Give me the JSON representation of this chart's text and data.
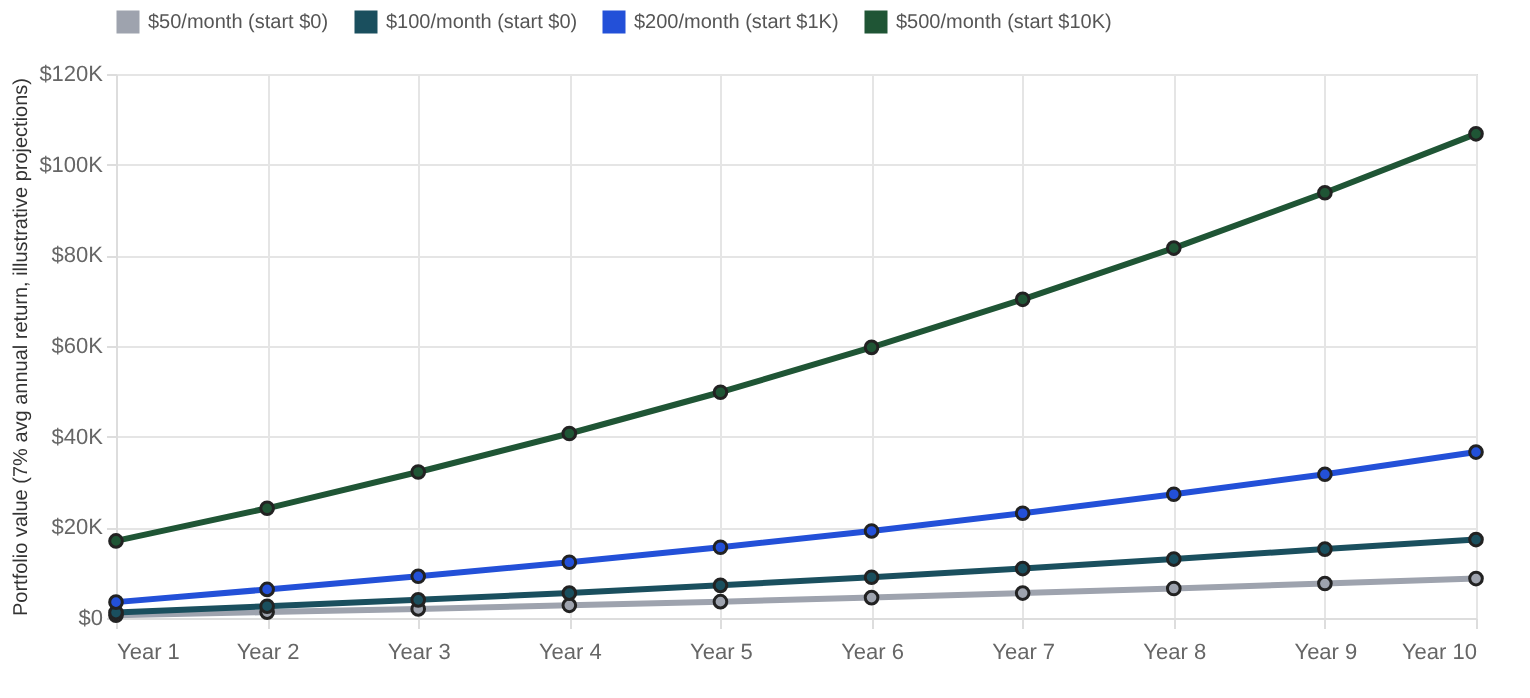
{
  "chart_data": {
    "type": "line",
    "ylabel": "Portfolio value (7% avg annual return, illustrative projections)",
    "categories": [
      "Year 1",
      "Year 2",
      "Year 3",
      "Year 4",
      "Year 5",
      "Year 6",
      "Year 7",
      "Year 8",
      "Year 9",
      "Year 10"
    ],
    "series": [
      {
        "name": "$50/month (start $0)",
        "color": "#9ea3ae",
        "values": [
          600,
          1300,
          2000,
          2800,
          3600,
          4500,
          5500,
          6500,
          7600,
          8700
        ]
      },
      {
        "name": "$100/month (start $0)",
        "color": "#1a4f5e",
        "values": [
          1200,
          2600,
          4000,
          5500,
          7200,
          9000,
          10900,
          13000,
          15200,
          17300
        ]
      },
      {
        "name": "$200/month (start $1K)",
        "color": "#2350d8",
        "values": [
          3500,
          6300,
          9200,
          12300,
          15600,
          19200,
          23100,
          27300,
          31700,
          36600
        ]
      },
      {
        "name": "$500/month (start $10K)",
        "color": "#1f5535",
        "values": [
          17000,
          24200,
          32200,
          40700,
          49800,
          59700,
          70300,
          81600,
          93800,
          106800
        ]
      }
    ],
    "ylim": [
      0,
      120000
    ],
    "yticks": [
      {
        "value": 0,
        "label": "$0"
      },
      {
        "value": 20000,
        "label": "$20K"
      },
      {
        "value": 40000,
        "label": "$40K"
      },
      {
        "value": 60000,
        "label": "$60K"
      },
      {
        "value": 80000,
        "label": "$80K"
      },
      {
        "value": 100000,
        "label": "$100K"
      },
      {
        "value": 120000,
        "label": "$120K"
      }
    ],
    "grid": true,
    "legend": "top",
    "marker": "circle",
    "line_style": "solid"
  }
}
